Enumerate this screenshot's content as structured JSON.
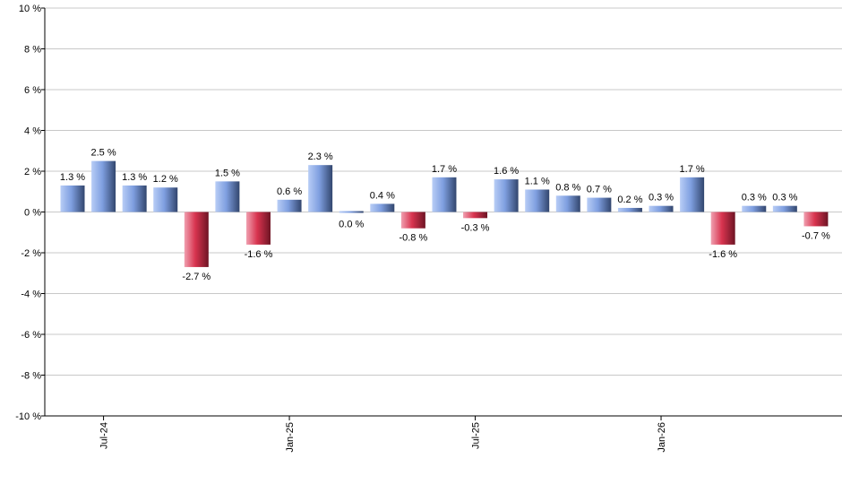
{
  "chart_data": {
    "type": "bar",
    "title": "",
    "xlabel": "",
    "ylabel": "",
    "ylim": [
      -10,
      10
    ],
    "yticks": [
      10,
      8,
      6,
      4,
      2,
      0,
      -2,
      -4,
      -6,
      -8,
      -10
    ],
    "ytick_labels": [
      "10 %",
      "8 %",
      "6 %",
      "4 %",
      "2 %",
      "0 %",
      "-2 %",
      "-4 %",
      "-6 %",
      "-8 %",
      "-10 %"
    ],
    "grid": true,
    "values": [
      1.3,
      2.5,
      1.3,
      1.2,
      -2.7,
      1.5,
      -1.6,
      0.6,
      2.3,
      0.0,
      0.4,
      -0.8,
      1.7,
      -0.3,
      1.6,
      1.1,
      0.8,
      0.7,
      0.2,
      0.3,
      1.7,
      -1.6,
      0.3,
      0.3,
      -0.7
    ],
    "data_labels": [
      "1.3 %",
      "2.5 %",
      "1.3 %",
      "1.2 %",
      "-2.7 %",
      "1.5 %",
      "-1.6 %",
      "0.6 %",
      "2.3 %",
      "0.0 %",
      "0.4 %",
      "-0.8 %",
      "1.7 %",
      "-0.3 %",
      "1.6 %",
      "1.1 %",
      "0.8 %",
      "0.7 %",
      "0.2 %",
      "0.3 %",
      "1.7 %",
      "-1.6 %",
      "0.3 %",
      "0.3 %",
      "-0.7 %"
    ],
    "xticks": [
      {
        "label": "Jul-24",
        "bar_index": 1
      },
      {
        "label": "Jan-25",
        "bar_index": 7
      },
      {
        "label": "Jul-25",
        "bar_index": 13
      },
      {
        "label": "Jan-26",
        "bar_index": 19
      }
    ],
    "colors": {
      "positive_light": "#b8cdf6",
      "positive_mid": "#7f9fe0",
      "positive_dark": "#32466e",
      "negative_light": "#f0a0b0",
      "negative_mid": "#d8344f",
      "negative_dark": "#6e1424",
      "grid": "#c8c8c8",
      "axis": "#000000"
    }
  }
}
